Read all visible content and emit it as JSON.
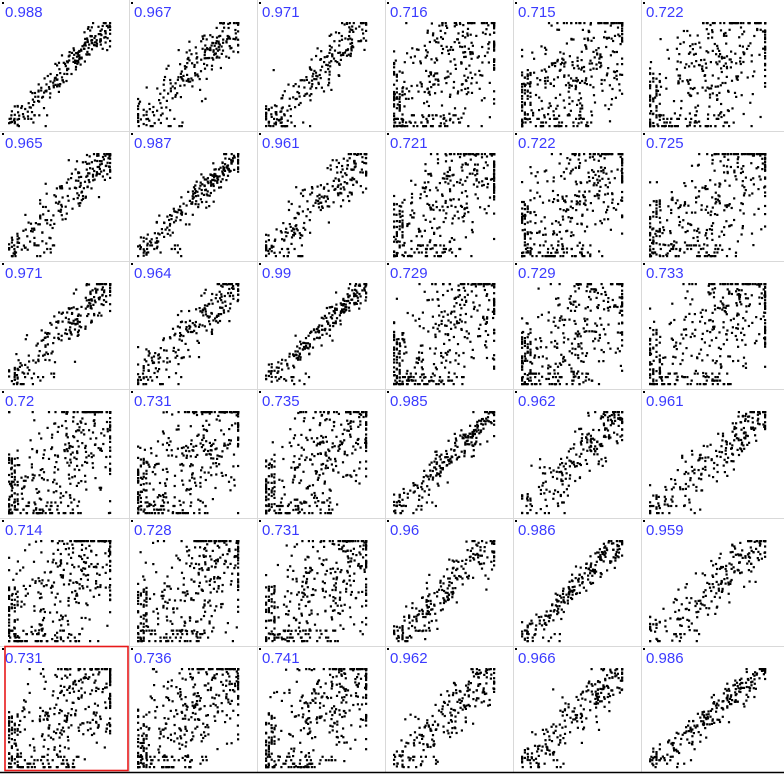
{
  "colors": {
    "background": "#ffffff",
    "label": "#3a3aff",
    "points": "#000000",
    "grid": "#d9d9d9",
    "selection": "#e8191a",
    "baseline": "#000000"
  },
  "chart_data": {
    "type": "scatter",
    "title": "",
    "rows": 6,
    "cols": 6,
    "grid": true,
    "selected_cell": [
      5,
      0
    ],
    "correlations": [
      [
        "0.988",
        "0.967",
        "0.971",
        "0.716",
        "0.715",
        "0.722"
      ],
      [
        "0.965",
        "0.987",
        "0.961",
        "0.721",
        "0.722",
        "0.725"
      ],
      [
        "0.971",
        "0.964",
        "0.99",
        "0.729",
        "0.729",
        "0.733"
      ],
      [
        "0.72",
        "0.731",
        "0.735",
        "0.985",
        "0.962",
        "0.961"
      ],
      [
        "0.714",
        "0.728",
        "0.731",
        "0.96",
        "0.986",
        "0.959"
      ],
      [
        "0.731",
        "0.736",
        "0.741",
        "0.962",
        "0.966",
        "0.986"
      ]
    ]
  }
}
